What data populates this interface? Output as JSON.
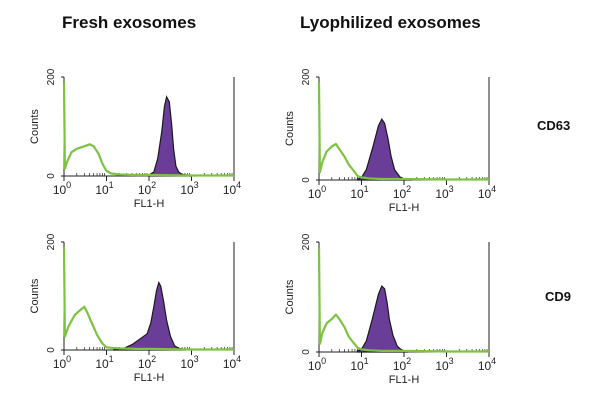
{
  "figure": {
    "column_titles": [
      "Fresh exosomes",
      "Lyophilized exosomes"
    ],
    "row_labels": [
      "CD63",
      "CD9"
    ]
  },
  "colors": {
    "control": "#7dc242",
    "sample_fill": "#6a3d99",
    "sample_line": "#1a1a1a",
    "axis": "#222222"
  },
  "chart_data": [
    {
      "type": "area",
      "name": "fresh-cd63",
      "column": "Fresh exosomes",
      "row": "CD63",
      "xlabel": "FL1-H",
      "ylabel": "Counts",
      "xscale": "log",
      "xlim": [
        1,
        10000
      ],
      "ylim": [
        0,
        200
      ],
      "xticks": [
        "10^0",
        "10^1",
        "10^2",
        "10^3",
        "10^4"
      ],
      "yticks": [
        "0",
        "200"
      ],
      "series": [
        {
          "x": [
            1,
            1.05,
            1.2,
            1.5,
            2,
            3,
            4,
            5,
            6.5,
            8,
            10,
            13,
            20,
            50,
            100,
            1000,
            10000
          ],
          "values": [
            190,
            15,
            30,
            48,
            55,
            60,
            64,
            60,
            45,
            25,
            10,
            5,
            3,
            2,
            2,
            1,
            1
          ]
        },
        {
          "x": [
            100,
            130,
            160,
            200,
            230,
            260,
            300,
            340,
            380,
            430,
            500,
            600,
            1000
          ],
          "values": [
            2,
            8,
            35,
            90,
            140,
            160,
            150,
            105,
            55,
            20,
            8,
            3,
            1
          ]
        }
      ]
    },
    {
      "type": "area",
      "name": "lyophilized-cd63",
      "column": "Lyophilized exosomes",
      "row": "CD63",
      "xlabel": "FL1-H",
      "ylabel": "Counts",
      "xscale": "log",
      "xlim": [
        1,
        10000
      ],
      "ylim": [
        0,
        200
      ],
      "xticks": [
        "10^0",
        "10^1",
        "10^2",
        "10^3",
        "10^4"
      ],
      "yticks": [
        "0",
        "200"
      ],
      "series": [
        {
          "x": [
            1,
            1.05,
            1.2,
            1.5,
            2,
            2.5,
            3,
            4,
            5,
            6,
            7,
            8,
            10,
            15,
            30,
            100,
            1000,
            10000
          ],
          "values": [
            190,
            15,
            35,
            55,
            65,
            70,
            60,
            45,
            30,
            22,
            15,
            8,
            5,
            3,
            2,
            2,
            1,
            1
          ]
        },
        {
          "x": [
            8,
            10,
            13,
            18,
            25,
            30,
            35,
            42,
            50,
            60,
            80,
            100,
            150
          ],
          "values": [
            2,
            5,
            20,
            60,
            105,
            118,
            110,
            80,
            45,
            20,
            6,
            2,
            1
          ]
        }
      ]
    },
    {
      "type": "area",
      "name": "fresh-cd9",
      "column": "Fresh exosomes",
      "row": "CD9",
      "xlabel": "FL1-H",
      "ylabel": "Counts",
      "xscale": "log",
      "xlim": [
        1,
        10000
      ],
      "ylim": [
        0,
        200
      ],
      "xticks": [
        "10^0",
        "10^1",
        "10^2",
        "10^3",
        "10^4"
      ],
      "yticks": [
        "0",
        "200"
      ],
      "series": [
        {
          "x": [
            1,
            1.05,
            1.3,
            1.8,
            2.5,
            3,
            3.5,
            4.5,
            6,
            8,
            10,
            13,
            20,
            50,
            100,
            1000,
            10000
          ],
          "values": [
            190,
            25,
            45,
            65,
            75,
            80,
            70,
            50,
            28,
            12,
            5,
            4,
            3,
            2,
            2,
            1,
            1
          ]
        },
        {
          "x": [
            15,
            25,
            40,
            60,
            90,
            110,
            130,
            150,
            170,
            190,
            220,
            260,
            320,
            400,
            500,
            700
          ],
          "values": [
            1,
            3,
            10,
            20,
            30,
            50,
            80,
            110,
            125,
            118,
            90,
            55,
            25,
            8,
            3,
            1
          ]
        }
      ]
    },
    {
      "type": "area",
      "name": "lyophilized-cd9",
      "column": "Lyophilized exosomes",
      "row": "CD9",
      "xlabel": "FL1-H",
      "ylabel": "Counts",
      "xscale": "log",
      "xlim": [
        1,
        10000
      ],
      "ylim": [
        0,
        200
      ],
      "xticks": [
        "10^0",
        "10^1",
        "10^2",
        "10^3",
        "10^4"
      ],
      "yticks": [
        "0",
        "200"
      ],
      "series": [
        {
          "x": [
            1,
            1.05,
            1.2,
            1.5,
            2,
            2.5,
            3,
            4,
            5,
            6,
            7,
            8,
            10,
            15,
            30,
            100,
            1000,
            10000
          ],
          "values": [
            190,
            15,
            35,
            52,
            60,
            68,
            60,
            45,
            28,
            20,
            14,
            8,
            5,
            3,
            2,
            2,
            1,
            1
          ]
        },
        {
          "x": [
            8,
            10,
            13,
            18,
            25,
            30,
            35,
            40,
            45,
            55,
            70,
            90,
            120
          ],
          "values": [
            2,
            5,
            20,
            60,
            105,
            120,
            115,
            90,
            60,
            30,
            10,
            3,
            1
          ]
        }
      ]
    }
  ]
}
